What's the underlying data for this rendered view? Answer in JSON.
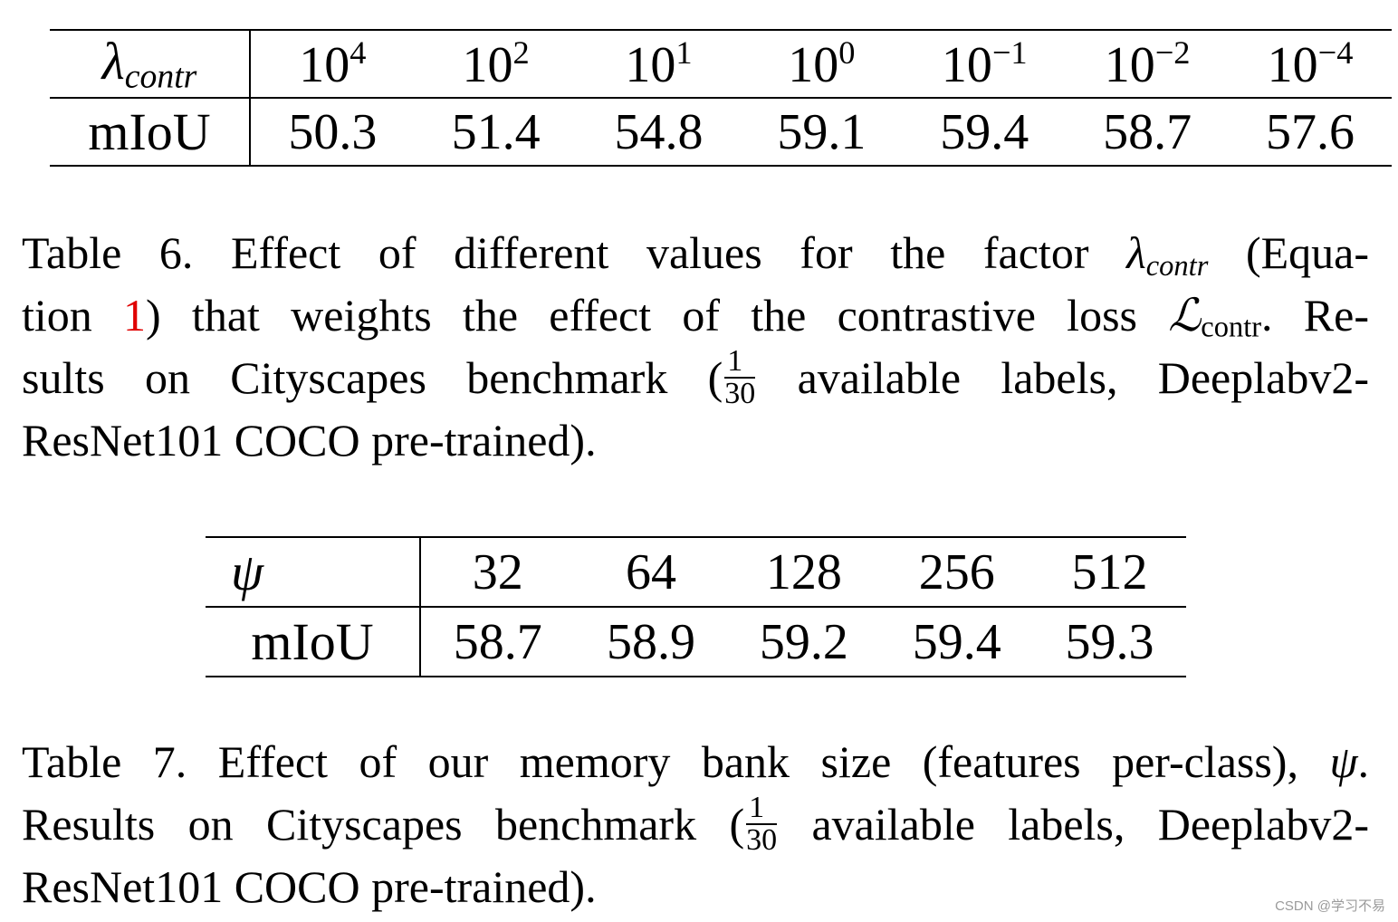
{
  "table6": {
    "header_label": "λ",
    "header_label_sub": "contr",
    "columns": [
      {
        "base": "10",
        "exp": "4"
      },
      {
        "base": "10",
        "exp": "2"
      },
      {
        "base": "10",
        "exp": "1"
      },
      {
        "base": "10",
        "exp": "0"
      },
      {
        "base": "10",
        "exp": "−1"
      },
      {
        "base": "10",
        "exp": "−2"
      },
      {
        "base": "10",
        "exp": "−4"
      }
    ],
    "row_label": "mIoU",
    "values": [
      "50.3",
      "51.4",
      "54.8",
      "59.1",
      "59.4",
      "58.7",
      "57.6"
    ]
  },
  "caption6": {
    "line1_pre": "Table 6. Effect of different values for the factor ",
    "lambda": "λ",
    "lambda_sub": "contr",
    "line1_post": " (Equa-",
    "line2_pre": "tion ",
    "ref": "1",
    "line2_mid": ") that weights the effect of the contrastive loss ",
    "loss_symbol": "ℒ",
    "loss_sub": "contr",
    "line2_post": ". Re-",
    "line3_pre": "sults on Cityscapes benchmark (",
    "frac_num": "1",
    "frac_den": "30",
    "line3_post": " available labels, Deeplabv2-",
    "line4": "ResNet101 COCO pre-trained)."
  },
  "table7": {
    "header_label": "ψ",
    "columns": [
      "32",
      "64",
      "128",
      "256",
      "512"
    ],
    "row_label": "mIoU",
    "values": [
      "58.7",
      "58.9",
      "59.2",
      "59.4",
      "59.3"
    ]
  },
  "caption7": {
    "line1_pre": "Table 7. Effect of our memory bank size (features per-class), ",
    "psi": "ψ",
    "line1_post": ".",
    "line2_pre": "Results on Cityscapes benchmark (",
    "frac_num": "1",
    "frac_den": "30",
    "line2_post": " available labels, Deeplabv2-",
    "line3": "ResNet101 COCO pre-trained)."
  },
  "watermark": "CSDN @学习不易"
}
